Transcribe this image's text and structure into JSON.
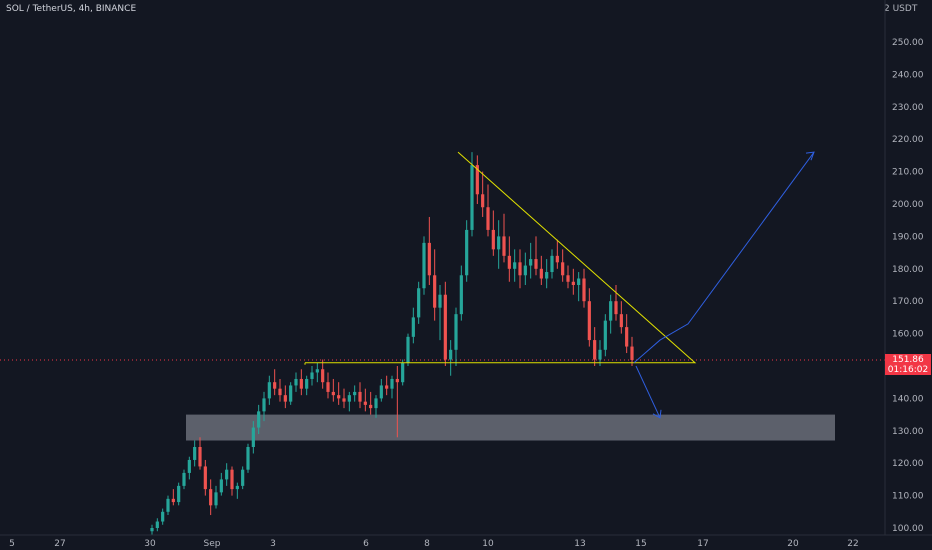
{
  "header": {
    "title": "SOL / TetherUS, 4h, BINANCE",
    "currency": "2 USDT"
  },
  "last_price": {
    "value": "151.86",
    "countdown": "01:16:02"
  },
  "colors": {
    "background": "#131722",
    "up": "#26a69a",
    "down": "#ef5350",
    "triangle": "#e0e000",
    "arrows": "#2f5fe0",
    "zone": "#6a6d78"
  },
  "chart_data": {
    "type": "candlestick",
    "title": "SOL / TetherUS, 4h, BINANCE",
    "xlabel": "",
    "ylabel": "",
    "ylim": [
      98,
      260
    ],
    "y_ticks": [
      100,
      110,
      120,
      130,
      140,
      150,
      160,
      170,
      180,
      190,
      200,
      210,
      220,
      230,
      240,
      250
    ],
    "x_ticks": [
      "5",
      "27",
      "30",
      "Sep",
      "3",
      "6",
      "8",
      "10",
      "13",
      "15",
      "17",
      "20",
      "22"
    ],
    "grid": false,
    "candles_ohlc": [
      [
        99,
        101,
        98,
        100
      ],
      [
        100,
        103,
        99,
        102
      ],
      [
        102,
        106,
        101,
        105
      ],
      [
        105,
        110,
        104,
        109
      ],
      [
        109,
        112,
        107,
        108
      ],
      [
        108,
        114,
        107,
        113
      ],
      [
        113,
        118,
        112,
        117
      ],
      [
        117,
        122,
        115,
        121
      ],
      [
        121,
        127,
        119,
        125
      ],
      [
        125,
        128,
        118,
        119
      ],
      [
        119,
        121,
        110,
        112
      ],
      [
        112,
        115,
        104,
        107
      ],
      [
        107,
        113,
        106,
        111
      ],
      [
        111,
        117,
        110,
        115
      ],
      [
        115,
        120,
        113,
        118
      ],
      [
        118,
        119,
        110,
        112
      ],
      [
        112,
        114,
        109,
        113
      ],
      [
        113,
        119,
        112,
        118
      ],
      [
        118,
        126,
        117,
        125
      ],
      [
        125,
        133,
        123,
        131
      ],
      [
        131,
        138,
        129,
        136
      ],
      [
        136,
        142,
        133,
        140
      ],
      [
        140,
        147,
        138,
        145
      ],
      [
        145,
        149,
        141,
        143
      ],
      [
        143,
        146,
        139,
        141
      ],
      [
        141,
        144,
        137,
        139
      ],
      [
        139,
        145,
        138,
        144
      ],
      [
        144,
        148,
        142,
        146
      ],
      [
        146,
        149,
        141,
        143
      ],
      [
        143,
        147,
        141,
        146
      ],
      [
        146,
        150,
        144,
        148
      ],
      [
        148,
        151,
        145,
        149
      ],
      [
        149,
        152,
        143,
        145
      ],
      [
        145,
        148,
        140,
        142
      ],
      [
        142,
        146,
        139,
        141
      ],
      [
        141,
        145,
        138,
        140
      ],
      [
        140,
        143,
        137,
        139
      ],
      [
        139,
        142,
        136,
        141
      ],
      [
        141,
        144,
        139,
        142
      ],
      [
        142,
        145,
        137,
        139
      ],
      [
        139,
        143,
        136,
        138
      ],
      [
        138,
        142,
        135,
        137
      ],
      [
        137,
        141,
        134,
        140
      ],
      [
        140,
        146,
        139,
        144
      ],
      [
        144,
        147,
        141,
        143
      ],
      [
        143,
        147,
        140,
        146
      ],
      [
        146,
        150,
        128,
        145
      ],
      [
        145,
        152,
        144,
        151
      ],
      [
        151,
        160,
        150,
        159
      ],
      [
        159,
        168,
        157,
        165
      ],
      [
        165,
        176,
        163,
        174
      ],
      [
        174,
        190,
        172,
        188
      ],
      [
        188,
        196,
        175,
        178
      ],
      [
        178,
        186,
        164,
        168
      ],
      [
        168,
        175,
        158,
        172
      ],
      [
        172,
        176,
        150,
        152
      ],
      [
        152,
        158,
        147,
        155
      ],
      [
        155,
        168,
        150,
        166
      ],
      [
        166,
        181,
        164,
        178
      ],
      [
        178,
        195,
        176,
        192
      ],
      [
        192,
        216,
        190,
        212
      ],
      [
        212,
        215,
        200,
        203
      ],
      [
        203,
        210,
        196,
        199
      ],
      [
        199,
        206,
        190,
        192
      ],
      [
        192,
        198,
        184,
        186
      ],
      [
        186,
        195,
        180,
        190
      ],
      [
        190,
        197,
        182,
        184
      ],
      [
        184,
        190,
        176,
        180
      ],
      [
        180,
        186,
        176,
        182
      ],
      [
        182,
        186,
        174,
        178
      ],
      [
        178,
        185,
        175,
        181
      ],
      [
        181,
        188,
        177,
        183
      ],
      [
        183,
        190,
        178,
        180
      ],
      [
        180,
        184,
        175,
        177
      ],
      [
        177,
        183,
        174,
        179
      ],
      [
        179,
        186,
        177,
        184
      ],
      [
        184,
        189,
        180,
        182
      ],
      [
        182,
        186,
        176,
        178
      ],
      [
        178,
        181,
        174,
        176
      ],
      [
        176,
        180,
        172,
        175
      ],
      [
        175,
        179,
        170,
        177
      ],
      [
        177,
        180,
        168,
        170
      ],
      [
        170,
        174,
        156,
        158
      ],
      [
        158,
        162,
        150,
        152
      ],
      [
        152,
        158,
        150,
        155
      ],
      [
        155,
        166,
        153,
        164
      ],
      [
        164,
        172,
        160,
        170
      ],
      [
        170,
        175,
        164,
        166
      ],
      [
        166,
        170,
        160,
        162
      ],
      [
        162,
        166,
        154,
        156
      ],
      [
        156,
        159,
        150,
        151.86
      ]
    ],
    "triangle": {
      "apex_high": 216,
      "support": 151,
      "apex_x": 17
    },
    "zone": [
      127,
      135
    ],
    "projections": [
      {
        "from": 151,
        "to": 216,
        "direction": "up"
      },
      {
        "from": 150,
        "to": 134,
        "direction": "down"
      }
    ],
    "last_price": 151.86
  }
}
